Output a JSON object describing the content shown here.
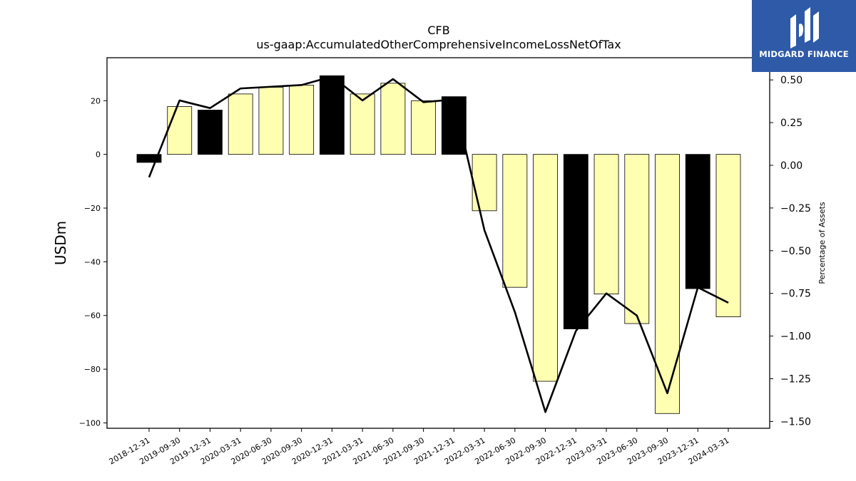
{
  "brand": {
    "name": "MIDGARD FINANCE",
    "bg_color": "#2f5aa8"
  },
  "chart_data": {
    "type": "bar",
    "title": "CFB",
    "subtitle": "us-gaap:AccumulatedOtherComprehensiveIncomeLossNetOfTax",
    "ylabel": "USDm",
    "y2label": "Percentage of Assets",
    "ylim": [
      -102,
      36
    ],
    "y2lim": [
      -1.54,
      0.63
    ],
    "yticks": [
      -100,
      -80,
      -60,
      -40,
      -20,
      0,
      20
    ],
    "y2ticks": [
      -1.5,
      -1.25,
      -1.0,
      -0.75,
      -0.5,
      -0.25,
      0.0,
      0.25,
      0.5
    ],
    "grid": false,
    "categories": [
      "2018-12-31",
      "2019-09-30",
      "2019-12-31",
      "2020-03-31",
      "2020-06-30",
      "2020-09-30",
      "2020-12-31",
      "2021-03-31",
      "2021-06-30",
      "2021-09-30",
      "2021-12-31",
      "2022-03-31",
      "2022-06-30",
      "2022-09-30",
      "2022-12-31",
      "2023-03-31",
      "2023-06-30",
      "2023-09-30",
      "2023-12-31",
      "2024-03-31"
    ],
    "bar_colors": [
      "#000000",
      "#ffffb2",
      "#000000",
      "#ffffb2",
      "#ffffb2",
      "#ffffb2",
      "#000000",
      "#ffffb2",
      "#ffffb2",
      "#ffffb2",
      "#000000",
      "#ffffb2",
      "#ffffb2",
      "#ffffb2",
      "#000000",
      "#ffffb2",
      "#ffffb2",
      "#ffffb2",
      "#000000",
      "#ffffb2"
    ],
    "series": [
      {
        "values": [
          -3,
          17.8,
          16.5,
          22.5,
          25,
          25.8,
          29.3,
          22.5,
          26.5,
          20,
          21.5,
          -21,
          -49.5,
          -84.5,
          -65,
          -52,
          -63,
          -96.5,
          -50,
          -60.5
        ]
      },
      {
        "axis": "right",
        "type": "line",
        "color": "#000000",
        "values": [
          -0.07,
          0.38,
          0.335,
          0.45,
          0.46,
          0.47,
          0.52,
          0.38,
          0.505,
          0.37,
          0.385,
          -0.38,
          -0.86,
          -1.445,
          -0.97,
          -0.75,
          -0.88,
          -1.335,
          -0.715,
          -0.805
        ]
      }
    ]
  }
}
